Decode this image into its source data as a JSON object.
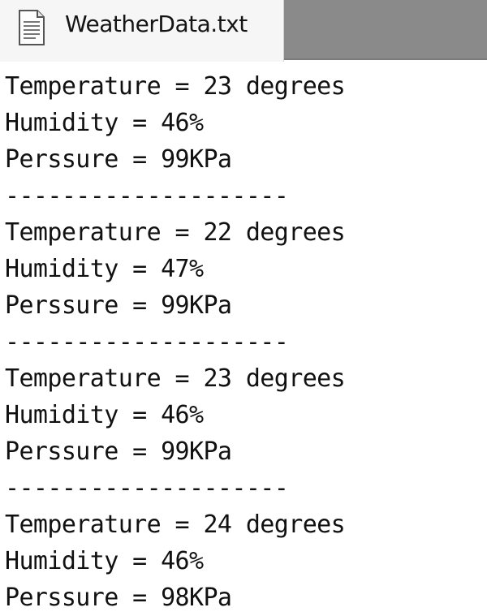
{
  "tab": {
    "title": "WeatherData.txt",
    "icon": "text-file-icon"
  },
  "colors": {
    "tab_active_bg": "#f6f6f6",
    "tab_inactive_bg": "#8a8a8a",
    "text": "#111111"
  },
  "records": [
    {
      "temperature": "Temperature = 23 degrees",
      "humidity": "Humidity = 46%",
      "pressure": "Perssure = 99KPa",
      "separator": "--------------------"
    },
    {
      "temperature": "Temperature = 22 degrees",
      "humidity": "Humidity = 47%",
      "pressure": "Perssure = 99KPa",
      "separator": "--------------------"
    },
    {
      "temperature": "Temperature = 23 degrees",
      "humidity": "Humidity = 46%",
      "pressure": "Perssure = 99KPa",
      "separator": "--------------------"
    },
    {
      "temperature": "Temperature = 24 degrees",
      "humidity": "Humidity = 46%",
      "pressure": "Perssure = 98KPa"
    }
  ]
}
